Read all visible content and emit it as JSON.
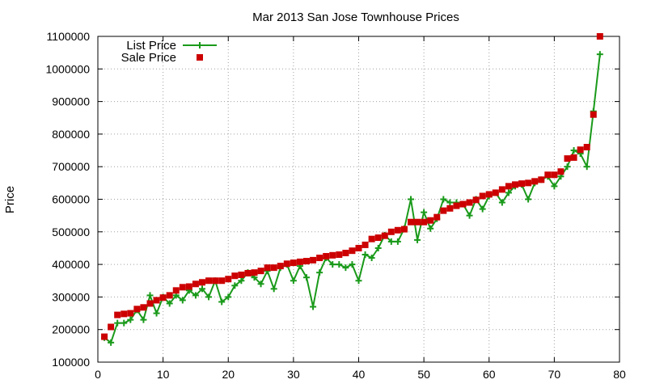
{
  "chart_data": {
    "type": "line",
    "title": "Mar 2013 San Jose Townhouse Prices",
    "xlabel": "",
    "ylabel": "Price",
    "xlim": [
      0,
      80
    ],
    "ylim": [
      100000,
      1100000
    ],
    "x_ticks": [
      0,
      10,
      20,
      30,
      40,
      50,
      60,
      70,
      80
    ],
    "y_ticks": [
      100000,
      200000,
      300000,
      400000,
      500000,
      600000,
      700000,
      800000,
      900000,
      1000000,
      1100000
    ],
    "grid": true,
    "legend_position": "top-left",
    "series": [
      {
        "name": "List Price",
        "style": "line-with-plus-markers",
        "color": "#1a9a1a",
        "x": [
          1,
          2,
          3,
          4,
          5,
          6,
          7,
          8,
          9,
          10,
          11,
          12,
          13,
          14,
          15,
          16,
          17,
          18,
          19,
          20,
          21,
          22,
          23,
          24,
          25,
          26,
          27,
          28,
          29,
          30,
          31,
          32,
          33,
          34,
          35,
          36,
          37,
          38,
          39,
          40,
          41,
          42,
          43,
          44,
          45,
          46,
          47,
          48,
          49,
          50,
          51,
          52,
          53,
          54,
          55,
          56,
          57,
          58,
          59,
          60,
          61,
          62,
          63,
          64,
          65,
          66,
          67,
          68,
          69,
          70,
          71,
          72,
          73,
          74,
          75,
          76,
          77
        ],
        "y": [
          175000,
          160000,
          220000,
          220000,
          230000,
          260000,
          230000,
          305000,
          250000,
          300000,
          280000,
          305000,
          290000,
          320000,
          305000,
          325000,
          300000,
          350000,
          285000,
          300000,
          335000,
          350000,
          375000,
          360000,
          340000,
          380000,
          325000,
          390000,
          400000,
          350000,
          395000,
          360000,
          270000,
          375000,
          420000,
          400000,
          400000,
          390000,
          400000,
          350000,
          430000,
          420000,
          450000,
          490000,
          470000,
          470000,
          510000,
          600000,
          475000,
          560000,
          510000,
          540000,
          600000,
          590000,
          590000,
          585000,
          550000,
          600000,
          570000,
          610000,
          620000,
          590000,
          620000,
          640000,
          645000,
          600000,
          650000,
          660000,
          670000,
          640000,
          670000,
          700000,
          750000,
          740000,
          700000,
          870000,
          1045000
        ]
      },
      {
        "name": "Sale Price",
        "style": "square-markers",
        "color": "#cc0000",
        "x": [
          1,
          2,
          3,
          4,
          5,
          6,
          7,
          8,
          9,
          10,
          11,
          12,
          13,
          14,
          15,
          16,
          17,
          18,
          19,
          20,
          21,
          22,
          23,
          24,
          25,
          26,
          27,
          28,
          29,
          30,
          31,
          32,
          33,
          34,
          35,
          36,
          37,
          38,
          39,
          40,
          41,
          42,
          43,
          44,
          45,
          46,
          47,
          48,
          49,
          50,
          51,
          52,
          53,
          54,
          55,
          56,
          57,
          58,
          59,
          60,
          61,
          62,
          63,
          64,
          65,
          66,
          67,
          68,
          69,
          70,
          71,
          72,
          73,
          74,
          75,
          76,
          77
        ],
        "y": [
          178000,
          208000,
          245000,
          248000,
          250000,
          263000,
          268000,
          280000,
          290000,
          298000,
          305000,
          320000,
          330000,
          332000,
          340000,
          345000,
          350000,
          350000,
          350000,
          355000,
          365000,
          368000,
          373000,
          375000,
          380000,
          390000,
          390000,
          395000,
          402000,
          405000,
          408000,
          410000,
          413000,
          420000,
          425000,
          428000,
          430000,
          435000,
          442000,
          450000,
          460000,
          478000,
          482000,
          488000,
          500000,
          505000,
          508000,
          530000,
          530000,
          530000,
          535000,
          545000,
          565000,
          572000,
          580000,
          585000,
          590000,
          598000,
          610000,
          615000,
          620000,
          630000,
          640000,
          645000,
          648000,
          650000,
          655000,
          660000,
          675000,
          675000,
          685000,
          725000,
          728000,
          752000,
          760000,
          860000,
          1100000
        ]
      }
    ]
  }
}
